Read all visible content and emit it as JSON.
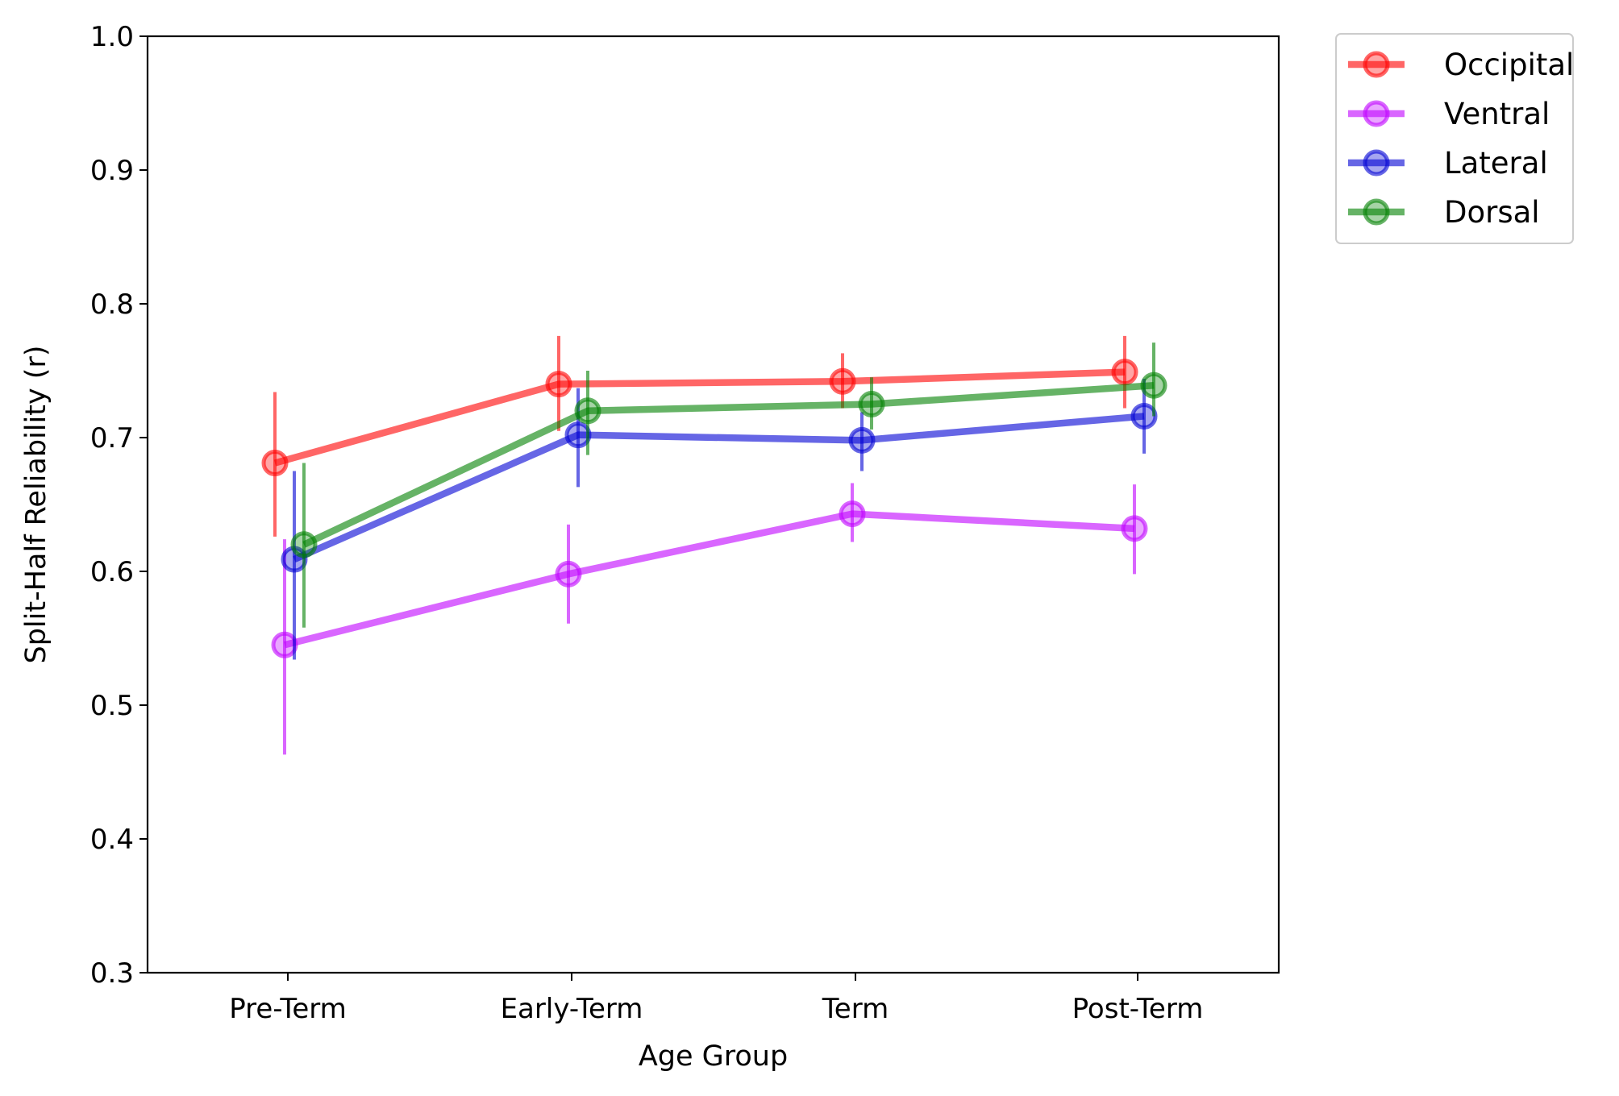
{
  "chart_data": {
    "type": "line",
    "title": "",
    "xlabel": "Age Group",
    "ylabel": "Split-Half Reliability (r)",
    "categories": [
      "Pre-Term",
      "Early-Term",
      "Term",
      "Post-Term"
    ],
    "ylim": [
      0.3,
      1.0
    ],
    "yticks": [
      "0.3",
      "0.4",
      "0.5",
      "0.6",
      "0.7",
      "0.8",
      "0.9",
      "1.0"
    ],
    "grid": false,
    "legend_placement": "outside-top-right",
    "series": [
      {
        "name": "Occipital",
        "color": "#ff0000",
        "values": [
          0.681,
          0.74,
          0.742,
          0.749
        ],
        "error_low": [
          0.626,
          0.705,
          0.722,
          0.722
        ],
        "error_high": [
          0.734,
          0.776,
          0.763,
          0.776
        ]
      },
      {
        "name": "Ventral",
        "color": "#bf00ff",
        "values": [
          0.545,
          0.598,
          0.643,
          0.632
        ],
        "error_low": [
          0.463,
          0.561,
          0.622,
          0.598
        ],
        "error_high": [
          0.624,
          0.635,
          0.666,
          0.665
        ]
      },
      {
        "name": "Lateral",
        "color": "#0000d4",
        "values": [
          0.609,
          0.702,
          0.698,
          0.716
        ],
        "error_low": [
          0.534,
          0.663,
          0.675,
          0.688
        ],
        "error_high": [
          0.675,
          0.737,
          0.719,
          0.744
        ]
      },
      {
        "name": "Dorsal",
        "color": "#008000",
        "values": [
          0.62,
          0.72,
          0.725,
          0.739
        ],
        "error_low": [
          0.558,
          0.687,
          0.706,
          0.716
        ],
        "error_high": [
          0.681,
          0.75,
          0.745,
          0.771
        ]
      }
    ]
  }
}
